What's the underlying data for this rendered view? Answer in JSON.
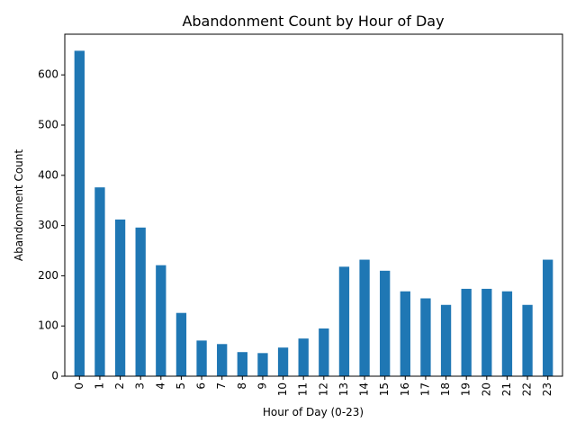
{
  "chart_data": {
    "type": "bar",
    "title": "Abandonment Count by Hour of Day",
    "xlabel": "Hour of Day (0-23)",
    "ylabel": "Abandonment Count",
    "categories": [
      "0",
      "1",
      "2",
      "3",
      "4",
      "5",
      "6",
      "7",
      "8",
      "9",
      "10",
      "11",
      "12",
      "13",
      "14",
      "15",
      "16",
      "17",
      "18",
      "19",
      "20",
      "21",
      "22",
      "23"
    ],
    "values": [
      648,
      376,
      312,
      296,
      221,
      126,
      71,
      64,
      48,
      46,
      57,
      75,
      95,
      218,
      232,
      210,
      169,
      155,
      142,
      174,
      174,
      169,
      142,
      232
    ],
    "ylim": [
      0,
      681
    ],
    "yticks": [
      0,
      100,
      200,
      300,
      400,
      500,
      600
    ],
    "bar_color": "#1f77b4",
    "grid": false,
    "legend": "none"
  }
}
